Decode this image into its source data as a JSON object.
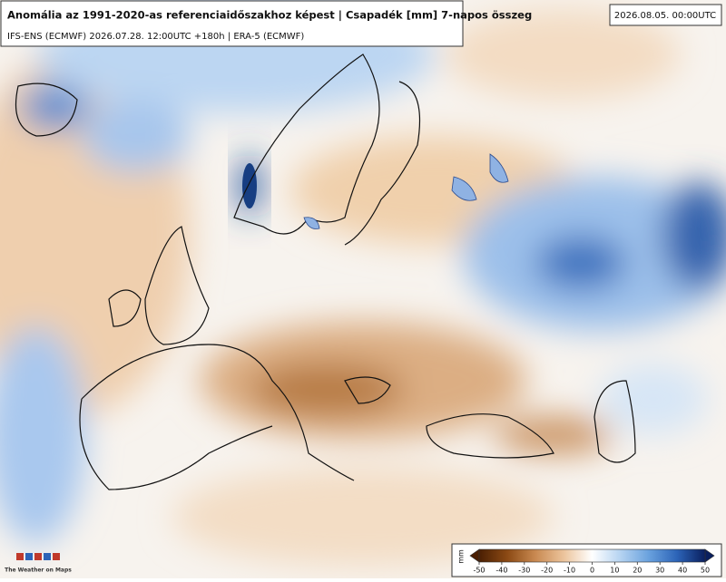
{
  "header": {
    "title": "Anomália az 1991-2020-as referenciaidőszakhoz képest | Csapadék [mm] 7-napos összeg",
    "subtitle": "IFS-ENS (ECMWF) 2026.07.28. 12:00UTC +180h | ERA-5 (ECMWF)",
    "valid_time": "2026.08.05. 00:00UTC"
  },
  "colorbar": {
    "unit": "mm",
    "range": [
      -50,
      50
    ],
    "ticks": [
      -50,
      -40,
      -30,
      -20,
      -10,
      0,
      10,
      20,
      30,
      40,
      50
    ],
    "colors": [
      "#4a1f03",
      "#8c4a14",
      "#c98a52",
      "#ecc49c",
      "#ffffff",
      "#b5d3f1",
      "#6aa2de",
      "#2c64b8",
      "#0a1f5e"
    ]
  },
  "logo": {
    "text": "The Weather on Maps"
  }
}
